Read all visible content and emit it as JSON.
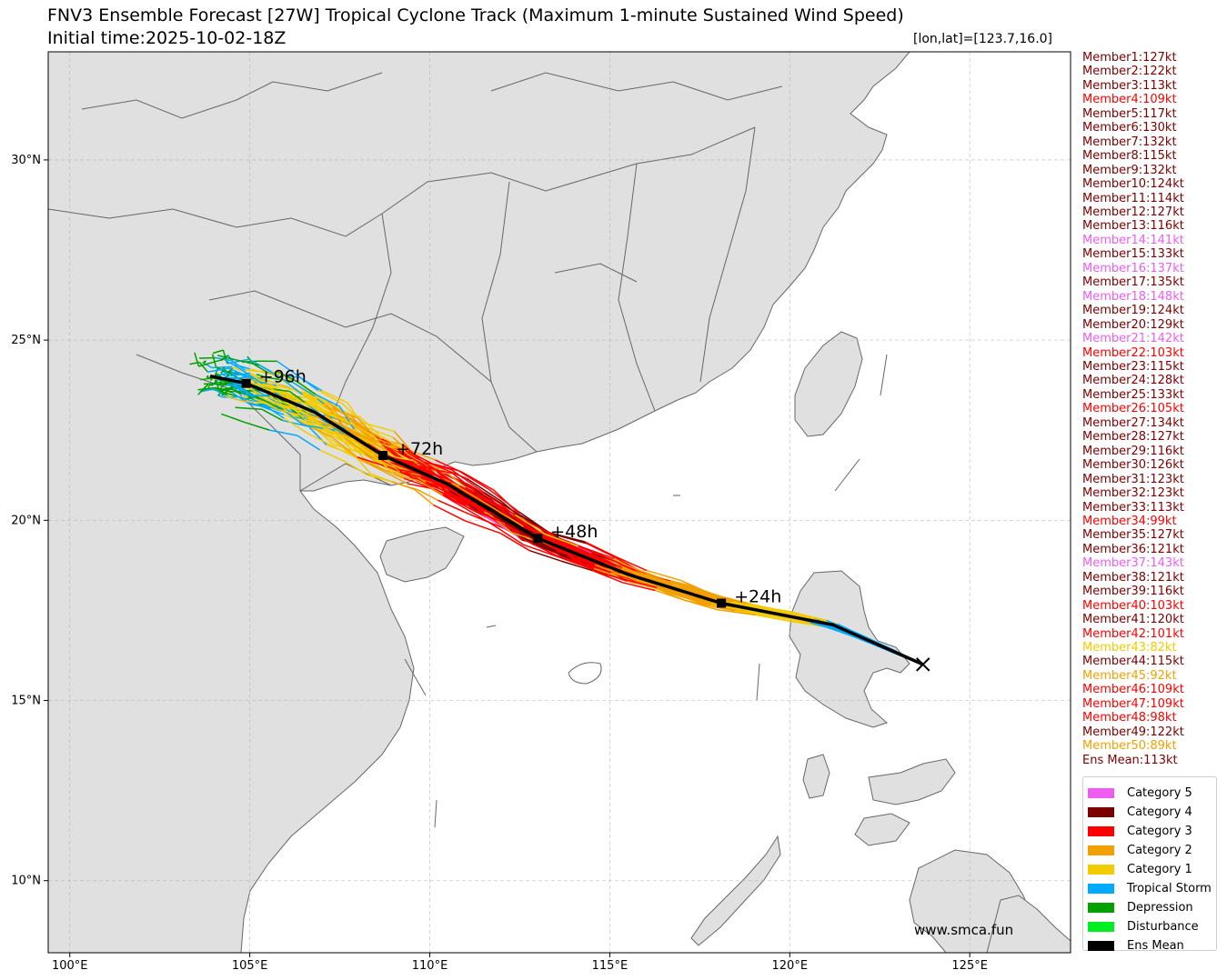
{
  "title": "FNV3 Ensemble Forecast [27W] Tropical Cyclone Track (Maximum 1-minute Sustained Wind Speed)",
  "subtitle": "Initial time:2025-10-02-18Z",
  "position_label": "[lon,lat]=[123.7,16.0]",
  "watermark": "www.smca.fun",
  "axes": {
    "lon_ticks": [
      "100°E",
      "105°E",
      "110°E",
      "115°E",
      "120°E",
      "125°E"
    ],
    "lat_ticks": [
      "10°N",
      "15°N",
      "20°N",
      "25°N",
      "30°N"
    ],
    "lon_range": [
      99.4,
      127.8
    ],
    "lat_range": [
      8.0,
      33.0
    ],
    "grid": true
  },
  "colors": {
    "Category 5": "#ee5df0",
    "Category 4": "#7d0000",
    "Category 3": "#ff0000",
    "Category 2": "#f2a000",
    "Category 1": "#f2cc00",
    "Tropical Storm": "#00aaff",
    "Depression": "#00a000",
    "Disturbance": "#00ee22",
    "Ens Mean": "#000000",
    "land": "#e0e0e0",
    "border": "#666666"
  },
  "members": [
    {
      "text": "Member1:127kt",
      "cat": "Category 4"
    },
    {
      "text": "Member2:122kt",
      "cat": "Category 4"
    },
    {
      "text": "Member3:113kt",
      "cat": "Category 4"
    },
    {
      "text": "Member4:109kt",
      "cat": "Category 3"
    },
    {
      "text": "Member5:117kt",
      "cat": "Category 4"
    },
    {
      "text": "Member6:130kt",
      "cat": "Category 4"
    },
    {
      "text": "Member7:132kt",
      "cat": "Category 4"
    },
    {
      "text": "Member8:115kt",
      "cat": "Category 4"
    },
    {
      "text": "Member9:132kt",
      "cat": "Category 4"
    },
    {
      "text": "Member10:124kt",
      "cat": "Category 4"
    },
    {
      "text": "Member11:114kt",
      "cat": "Category 4"
    },
    {
      "text": "Member12:127kt",
      "cat": "Category 4"
    },
    {
      "text": "Member13:116kt",
      "cat": "Category 4"
    },
    {
      "text": "Member14:141kt",
      "cat": "Category 5"
    },
    {
      "text": "Member15:133kt",
      "cat": "Category 4"
    },
    {
      "text": "Member16:137kt",
      "cat": "Category 5"
    },
    {
      "text": "Member17:135kt",
      "cat": "Category 4"
    },
    {
      "text": "Member18:148kt",
      "cat": "Category 5"
    },
    {
      "text": "Member19:124kt",
      "cat": "Category 4"
    },
    {
      "text": "Member20:129kt",
      "cat": "Category 4"
    },
    {
      "text": "Member21:142kt",
      "cat": "Category 5"
    },
    {
      "text": "Member22:103kt",
      "cat": "Category 3"
    },
    {
      "text": "Member23:115kt",
      "cat": "Category 4"
    },
    {
      "text": "Member24:128kt",
      "cat": "Category 4"
    },
    {
      "text": "Member25:133kt",
      "cat": "Category 4"
    },
    {
      "text": "Member26:105kt",
      "cat": "Category 3"
    },
    {
      "text": "Member27:134kt",
      "cat": "Category 4"
    },
    {
      "text": "Member28:127kt",
      "cat": "Category 4"
    },
    {
      "text": "Member29:116kt",
      "cat": "Category 4"
    },
    {
      "text": "Member30:126kt",
      "cat": "Category 4"
    },
    {
      "text": "Member31:123kt",
      "cat": "Category 4"
    },
    {
      "text": "Member32:123kt",
      "cat": "Category 4"
    },
    {
      "text": "Member33:113kt",
      "cat": "Category 4"
    },
    {
      "text": "Member34:99kt",
      "cat": "Category 3"
    },
    {
      "text": "Member35:127kt",
      "cat": "Category 4"
    },
    {
      "text": "Member36:121kt",
      "cat": "Category 4"
    },
    {
      "text": "Member37:143kt",
      "cat": "Category 5"
    },
    {
      "text": "Member38:121kt",
      "cat": "Category 4"
    },
    {
      "text": "Member39:116kt",
      "cat": "Category 4"
    },
    {
      "text": "Member40:103kt",
      "cat": "Category 3"
    },
    {
      "text": "Member41:120kt",
      "cat": "Category 4"
    },
    {
      "text": "Member42:101kt",
      "cat": "Category 3"
    },
    {
      "text": "Member43:82kt",
      "cat": "Category 1"
    },
    {
      "text": "Member44:115kt",
      "cat": "Category 4"
    },
    {
      "text": "Member45:92kt",
      "cat": "Category 2"
    },
    {
      "text": "Member46:109kt",
      "cat": "Category 3"
    },
    {
      "text": "Member47:109kt",
      "cat": "Category 3"
    },
    {
      "text": "Member48:98kt",
      "cat": "Category 3"
    },
    {
      "text": "Member49:122kt",
      "cat": "Category 4"
    },
    {
      "text": "Member50:89kt",
      "cat": "Category 2"
    },
    {
      "text": "Ens Mean:113kt",
      "cat": "Category 4"
    }
  ],
  "legend": [
    "Category 5",
    "Category 4",
    "Category 3",
    "Category 2",
    "Category 1",
    "Tropical Storm",
    "Depression",
    "Disturbance",
    "Ens Mean"
  ],
  "ens_mean": {
    "track": [
      [
        123.7,
        16.0
      ],
      [
        121.2,
        17.1
      ],
      [
        118.1,
        17.7
      ],
      [
        115.5,
        18.5
      ],
      [
        113.0,
        19.5
      ],
      [
        110.5,
        21.0
      ],
      [
        108.7,
        21.8
      ],
      [
        106.8,
        23.0
      ],
      [
        104.9,
        23.8
      ],
      [
        103.9,
        24.0
      ]
    ],
    "markers": [
      {
        "lon": 118.1,
        "lat": 17.7,
        "label": "+24h"
      },
      {
        "lon": 113.0,
        "lat": 19.5,
        "label": "+48h"
      },
      {
        "lon": 108.7,
        "lat": 21.8,
        "label": "+72h"
      },
      {
        "lon": 104.9,
        "lat": 23.8,
        "label": "+96h"
      }
    ],
    "initial": {
      "lon": 123.7,
      "lat": 16.0
    }
  }
}
